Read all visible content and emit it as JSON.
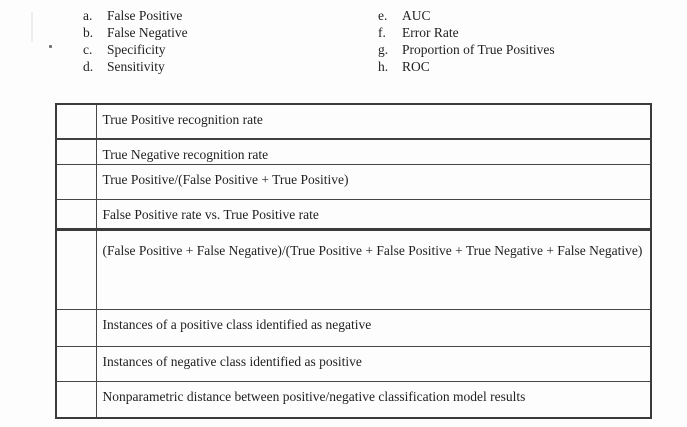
{
  "colors": {
    "background": "#fdfdfd",
    "text": "#1f1f1f",
    "table_border": "#3b3b3b"
  },
  "options": {
    "left": [
      {
        "letter": "a.",
        "label": "False Positive"
      },
      {
        "letter": "b.",
        "label": "False Negative"
      },
      {
        "letter": "c.",
        "label": "Specificity"
      },
      {
        "letter": "d.",
        "label": "Sensitivity"
      }
    ],
    "right": [
      {
        "letter": "e.",
        "label": "AUC"
      },
      {
        "letter": "f.",
        "label": "Error Rate"
      },
      {
        "letter": "g.",
        "label": "Proportion of True Positives"
      },
      {
        "letter": "h.",
        "label": "ROC"
      }
    ]
  },
  "matching_table": {
    "rows": [
      {
        "answer": "",
        "description": "True Positive recognition rate"
      },
      {
        "answer": "",
        "description": "True Negative recognition rate"
      },
      {
        "answer": "",
        "description": "True Positive/(False Positive + True Positive)"
      },
      {
        "answer": "",
        "description": "False Positive rate vs. True Positive rate"
      },
      {
        "answer": "",
        "description": "(False Positive + False Negative)/(True Positive + False Positive + True Negative + False Negative)"
      },
      {
        "answer": "",
        "description": "Instances of a positive class identified as negative"
      },
      {
        "answer": "",
        "description": "Instances of negative class identified as positive"
      },
      {
        "answer": "",
        "description": "Nonparametric distance between positive/negative classification model results"
      }
    ]
  }
}
